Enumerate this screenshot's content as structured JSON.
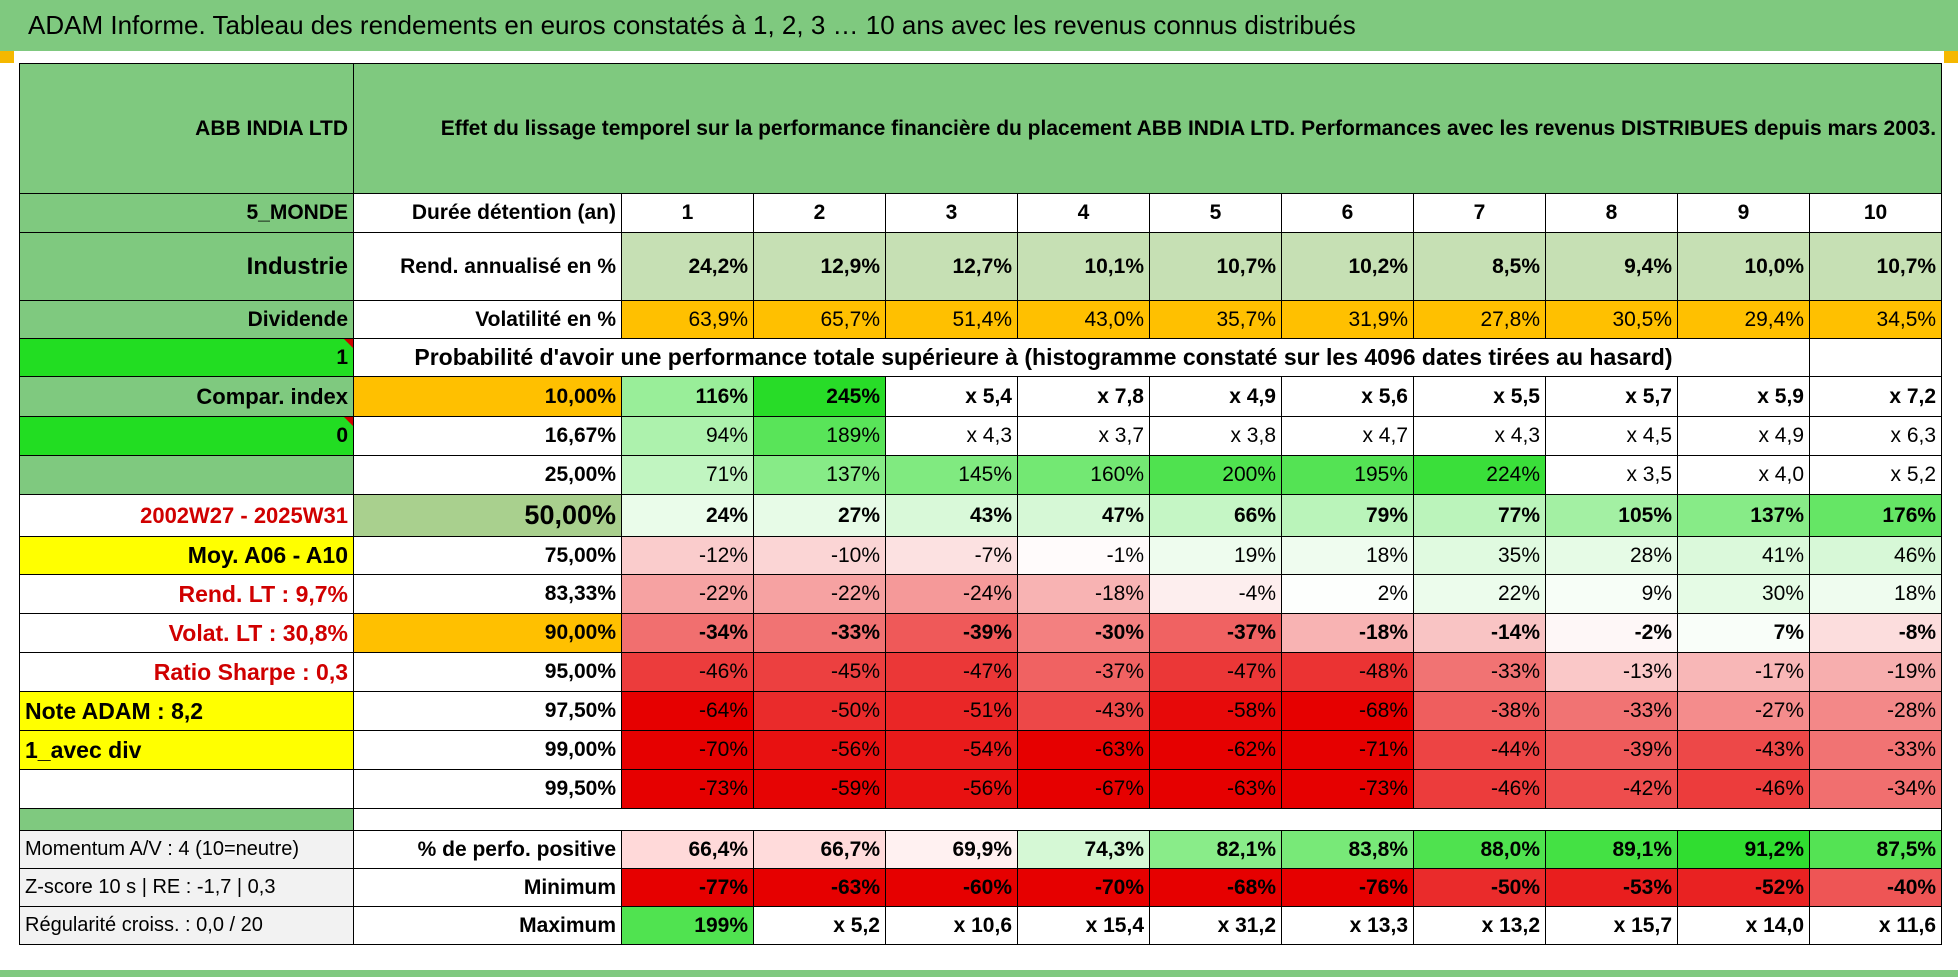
{
  "banner": "ADAM Informe. Tableau des rendements en euros constatés à 1, 2, 3 … 10 ans avec les revenus connus distribués",
  "header": {
    "company": "ABB INDIA LTD",
    "description": "Effet du lissage temporel sur la performance financière du placement ABB INDIA LTD. Performances avec les revenus DISTRIBUES depuis mars 2003."
  },
  "left": {
    "zone": "5_MONDE",
    "sector": "Industrie",
    "dividend_label": "Dividende",
    "dividend_value": "1",
    "compar_label": "Compar. index",
    "compar_value": "0",
    "period": "2002W27 - 2025W31",
    "moy": "Moy. A06 - A10",
    "rend_lt": "Rend. LT :    9,7%",
    "volat_lt": "Volat. LT :    30,8%",
    "sharpe": "Ratio Sharpe :    0,3",
    "note": "Note ADAM : 8,2",
    "avec_div": "1_avec div"
  },
  "rows": {
    "duration_label": "Durée détention (an)",
    "years": [
      "1",
      "2",
      "3",
      "4",
      "5",
      "6",
      "7",
      "8",
      "9",
      "10"
    ],
    "rend_label": "Rend. annualisé en %",
    "rend": [
      "24,2%",
      "12,9%",
      "12,7%",
      "10,1%",
      "10,7%",
      "10,2%",
      "8,5%",
      "9,4%",
      "10,0%",
      "10,7%"
    ],
    "vol_label": "Volatilité en %",
    "vol": [
      "63,9%",
      "65,7%",
      "51,4%",
      "43,0%",
      "35,7%",
      "31,9%",
      "27,8%",
      "30,5%",
      "29,4%",
      "34,5%"
    ],
    "proba_title": "Probabilité d'avoir une performance totale supérieure à (histogramme constaté sur les 4096 dates tirées au hasard)"
  },
  "prob": [
    {
      "p": "10,00%",
      "v": [
        "116%",
        "245%",
        "x 5,4",
        "x 7,8",
        "x 4,9",
        "x 5,6",
        "x 5,5",
        "x 5,7",
        "x 5,9",
        "x 7,2"
      ]
    },
    {
      "p": "16,67%",
      "v": [
        "94%",
        "189%",
        "x 4,3",
        "x 3,7",
        "x 3,8",
        "x 4,7",
        "x 4,3",
        "x 4,5",
        "x 4,9",
        "x 6,3"
      ]
    },
    {
      "p": "25,00%",
      "v": [
        "71%",
        "137%",
        "145%",
        "160%",
        "200%",
        "195%",
        "224%",
        "x 3,5",
        "x 4,0",
        "x 5,2"
      ]
    },
    {
      "p": "50,00%",
      "v": [
        "24%",
        "27%",
        "43%",
        "47%",
        "66%",
        "79%",
        "77%",
        "105%",
        "137%",
        "176%"
      ]
    },
    {
      "p": "75,00%",
      "v": [
        "-12%",
        "-10%",
        "-7%",
        "-1%",
        "19%",
        "18%",
        "35%",
        "28%",
        "41%",
        "46%"
      ]
    },
    {
      "p": "83,33%",
      "v": [
        "-22%",
        "-22%",
        "-24%",
        "-18%",
        "-4%",
        "2%",
        "22%",
        "9%",
        "30%",
        "18%"
      ]
    },
    {
      "p": "90,00%",
      "v": [
        "-34%",
        "-33%",
        "-39%",
        "-30%",
        "-37%",
        "-18%",
        "-14%",
        "-2%",
        "7%",
        "-8%"
      ]
    },
    {
      "p": "95,00%",
      "v": [
        "-46%",
        "-45%",
        "-47%",
        "-37%",
        "-47%",
        "-48%",
        "-33%",
        "-13%",
        "-17%",
        "-19%"
      ]
    },
    {
      "p": "97,50%",
      "v": [
        "-64%",
        "-50%",
        "-51%",
        "-43%",
        "-58%",
        "-68%",
        "-38%",
        "-33%",
        "-27%",
        "-28%"
      ]
    },
    {
      "p": "99,00%",
      "v": [
        "-70%",
        "-56%",
        "-54%",
        "-63%",
        "-62%",
        "-71%",
        "-44%",
        "-39%",
        "-43%",
        "-33%"
      ]
    },
    {
      "p": "99,50%",
      "v": [
        "-73%",
        "-59%",
        "-56%",
        "-67%",
        "-63%",
        "-73%",
        "-46%",
        "-42%",
        "-46%",
        "-34%"
      ]
    }
  ],
  "bottom": {
    "momentum": "Momentum A/V : 4 (10=neutre)",
    "zscore": "Z-score 10 s | RE : -1,7 | 0,3",
    "regularite": "Régularité croiss. : 0,0 / 20",
    "pos_label": "% de perfo. positive",
    "pos": [
      "66,4%",
      "66,7%",
      "69,9%",
      "74,3%",
      "82,1%",
      "83,8%",
      "88,0%",
      "89,1%",
      "91,2%",
      "87,5%"
    ],
    "min_label": "Minimum",
    "min": [
      "-77%",
      "-63%",
      "-60%",
      "-70%",
      "-68%",
      "-76%",
      "-50%",
      "-53%",
      "-52%",
      "-40%"
    ],
    "max_label": "Maximum",
    "max": [
      "199%",
      "x 5,2",
      "x 10,6",
      "x 15,4",
      "x 31,2",
      "x 13,3",
      "x 13,2",
      "x 15,7",
      "x 14,0",
      "x 11,6"
    ]
  },
  "colors": {
    "green_header": "#7fc97f",
    "bright_green": "#22dd22",
    "yellow": "#ffff00",
    "orange": "#ffc000",
    "red_text": "#d00000"
  }
}
